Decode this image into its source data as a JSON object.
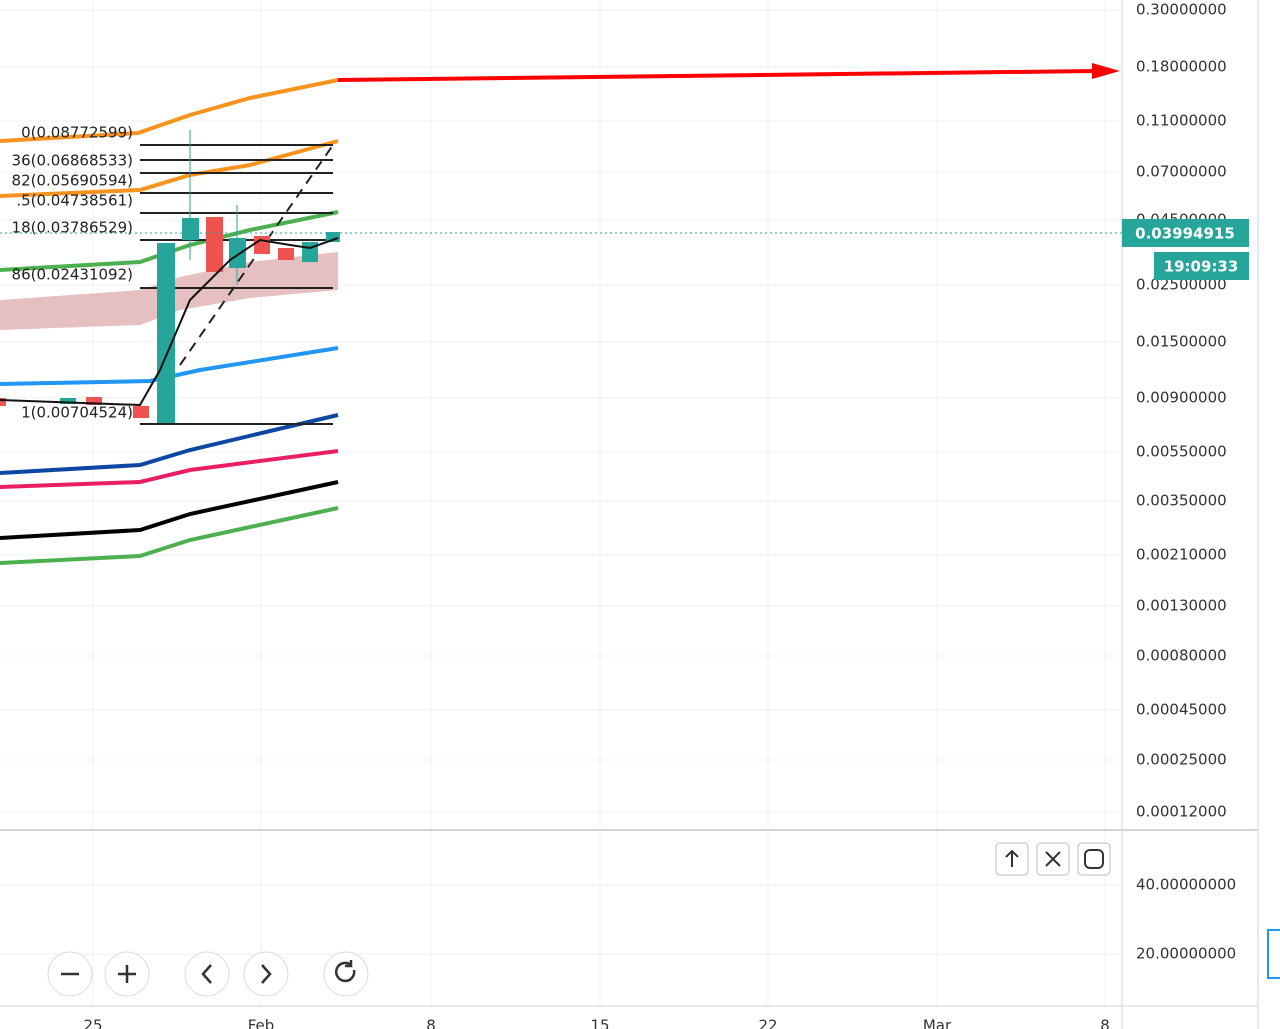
{
  "price_axis": {
    "labels": [
      "0.30000000",
      "0.18000000",
      "0.11000000",
      "0.07000000",
      "0.04500000",
      "0.02500000",
      "0.01500000",
      "0.00900000",
      "0.00550000",
      "0.00350000",
      "0.00210000",
      "0.00130000",
      "0.00080000",
      "0.00045000",
      "0.00025000",
      "0.00012000"
    ],
    "last_price": "0.03994915",
    "countdown": "19:09:33"
  },
  "fib_levels": [
    "0(0.08772599)",
    "36(0.06868533)",
    "82(0.05690594)",
    ".5(0.04738561)",
    "18(0.03786529)",
    "86(0.02431092)",
    "1(0.00704524)"
  ],
  "lower_pane": {
    "labels": [
      "40.00000000",
      "20.00000000"
    ]
  },
  "time_axis": {
    "labels": [
      "25",
      "Feb",
      "8",
      "15",
      "22",
      "Mar",
      "8"
    ]
  }
}
